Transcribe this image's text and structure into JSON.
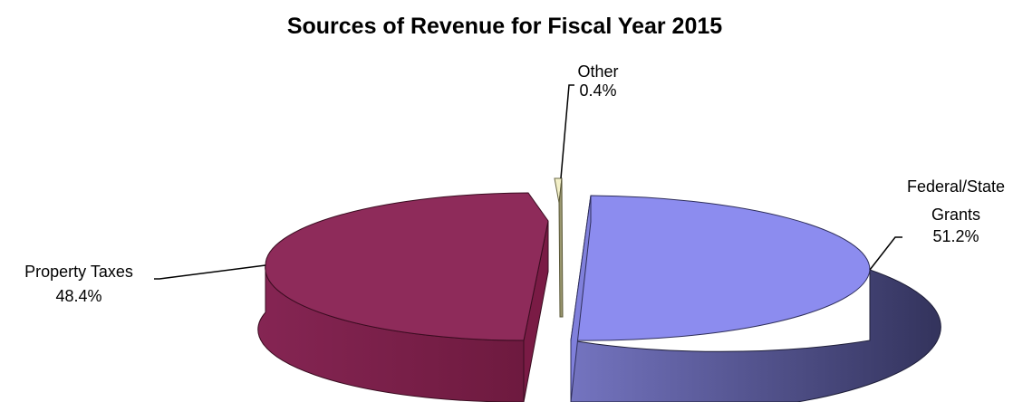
{
  "chart_data": {
    "type": "pie",
    "title": "Sources of Revenue for Fiscal Year 2015",
    "slices": [
      {
        "name": "Federal/State Grants",
        "label_lines": [
          "Federal/State",
          "Grants"
        ],
        "value": 51.2,
        "value_label": "51.2%",
        "color": "#8c8cef",
        "side_color": "#3d3d6b"
      },
      {
        "name": "Other",
        "label_lines": [
          "Other"
        ],
        "value": 0.4,
        "value_label": "0.4%",
        "color": "#f3f0c8",
        "side_color": "#9b9870"
      },
      {
        "name": "Property Taxes",
        "label_lines": [
          "Property Taxes"
        ],
        "value": 48.4,
        "value_label": "48.4%",
        "color": "#8e2b5a",
        "side_color": "#74193f"
      }
    ],
    "style": "3d-exploded",
    "legend": "none"
  }
}
